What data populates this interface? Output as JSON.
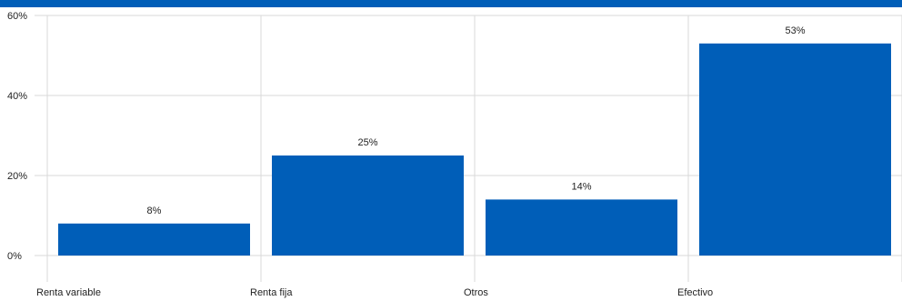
{
  "colors": {
    "accent": "#005eb8",
    "grid": "#d9d9d9",
    "text": "#222222"
  },
  "chart_data": {
    "type": "bar",
    "categories": [
      "Renta variable",
      "Renta fija",
      "Otros",
      "Efectivo"
    ],
    "values": [
      8,
      25,
      14,
      53
    ],
    "data_labels": [
      "8%",
      "25%",
      "14%",
      "53%"
    ],
    "yticks": [
      "0%",
      "20%",
      "40%",
      "60%"
    ],
    "ylim": [
      0,
      60
    ],
    "title": "",
    "xlabel": "",
    "ylabel": "",
    "grid": true,
    "legend": "none"
  }
}
